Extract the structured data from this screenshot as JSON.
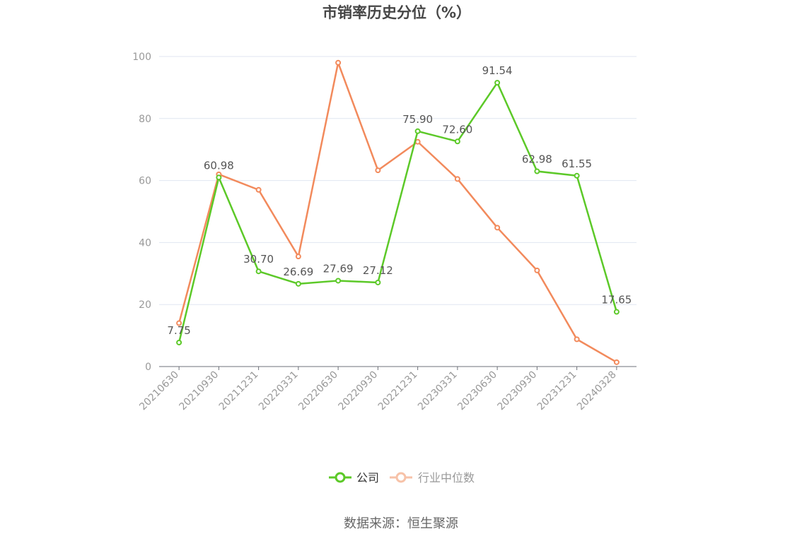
{
  "chart_data": {
    "type": "line",
    "title": "市销率历史分位（%）",
    "categories": [
      "20210630",
      "20210930",
      "20211231",
      "20220331",
      "20220630",
      "20220930",
      "20221231",
      "20230331",
      "20230630",
      "20230930",
      "20231231",
      "20240328"
    ],
    "series": [
      {
        "name": "公司",
        "color": "#5cc928",
        "values": [
          7.75,
          60.98,
          30.7,
          26.69,
          27.69,
          27.12,
          75.9,
          72.6,
          91.54,
          62.98,
          61.55,
          17.65
        ],
        "labels": [
          "7.75",
          "60.98",
          "30.70",
          "26.69",
          "27.69",
          "27.12",
          "75.90",
          "72.60",
          "91.54",
          "62.98",
          "61.55",
          "17.65"
        ]
      },
      {
        "name": "行业中位数",
        "color": "#f28a5c",
        "values": [
          14.0,
          62.0,
          57.0,
          35.5,
          98.0,
          63.3,
          72.5,
          60.5,
          44.8,
          31.0,
          8.8,
          1.4
        ]
      }
    ],
    "yticks": [
      "0",
      "20",
      "40",
      "60",
      "80",
      "100"
    ],
    "ylim": [
      0,
      100
    ],
    "grid": true,
    "legend": "bottom-center"
  },
  "source": "数据来源：恒生聚源",
  "colors": {
    "gridline": "#e0e6f1",
    "axis": "#6e7079",
    "legend_inactive": "#f7c2a8"
  }
}
